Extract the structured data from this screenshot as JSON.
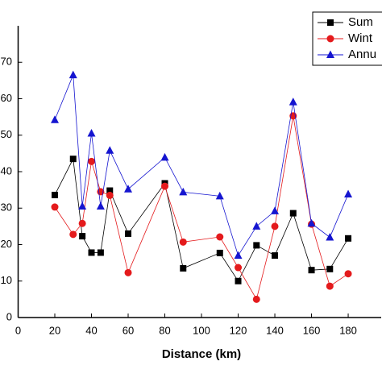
{
  "chart_data": {
    "type": "line",
    "x_label": "Distance (km)",
    "x": [
      20,
      30,
      35,
      40,
      45,
      50,
      60,
      80,
      90,
      110,
      120,
      130,
      140,
      150,
      160,
      170,
      180
    ],
    "series": [
      {
        "name": "Sum",
        "color": "#000000",
        "marker": "square",
        "values": [
          33.6,
          43.5,
          22.3,
          17.8,
          17.8,
          34.8,
          23,
          36.8,
          13.5,
          17.7,
          10,
          19.8,
          17,
          28.6,
          13,
          13.3,
          21.7
        ]
      },
      {
        "name": "Wint",
        "color": "#e41a1c",
        "marker": "circle",
        "values": [
          30.3,
          22.8,
          25.8,
          42.8,
          34.5,
          33.5,
          12.3,
          36,
          20.7,
          22.1,
          13.7,
          5,
          25,
          55.3,
          25.6,
          8.6,
          12
        ]
      },
      {
        "name": "Annu",
        "color": "#1515d0",
        "marker": "triangle",
        "values": [
          54.2,
          66.5,
          30.5,
          50.5,
          30.5,
          45.8,
          35.2,
          43.9,
          34.4,
          33.3,
          17,
          25,
          29.2,
          59.1,
          25.8,
          22,
          33.8
        ]
      }
    ],
    "xlim": [
      0,
      198
    ],
    "xticks": [
      0,
      20,
      40,
      60,
      80,
      100,
      120,
      140,
      160,
      180
    ],
    "ylim": [
      0,
      80
    ],
    "yticks": [
      0,
      10,
      20,
      30,
      40,
      50,
      60,
      70
    ],
    "legend": "upper right"
  }
}
